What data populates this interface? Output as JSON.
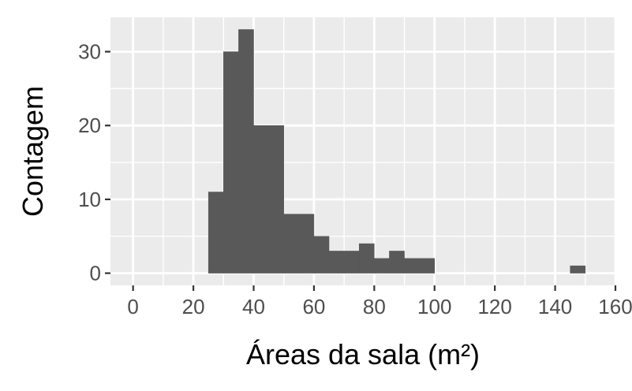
{
  "chart_data": {
    "type": "bar",
    "subtype": "histogram",
    "title": "",
    "xlabel": "Áreas da sala (m²)",
    "ylabel": "Contagem",
    "xlim": [
      -7.5,
      160
    ],
    "ylim": [
      -1.65,
      34.65
    ],
    "x_ticks": [
      0,
      20,
      40,
      60,
      80,
      100,
      120,
      140,
      160
    ],
    "x_tick_labels": [
      "0",
      "20",
      "40",
      "60",
      "80",
      "100",
      "120",
      "140",
      "160"
    ],
    "y_ticks": [
      0,
      10,
      20,
      30
    ],
    "y_tick_labels": [
      "0",
      "10",
      "20",
      "30"
    ],
    "bin_width": 5,
    "bins": [
      {
        "x0": 25,
        "x1": 30,
        "count": 11
      },
      {
        "x0": 30,
        "x1": 35,
        "count": 30
      },
      {
        "x0": 35,
        "x1": 40,
        "count": 33
      },
      {
        "x0": 40,
        "x1": 45,
        "count": 20
      },
      {
        "x0": 45,
        "x1": 50,
        "count": 20
      },
      {
        "x0": 50,
        "x1": 55,
        "count": 8
      },
      {
        "x0": 55,
        "x1": 60,
        "count": 8
      },
      {
        "x0": 60,
        "x1": 65,
        "count": 5
      },
      {
        "x0": 65,
        "x1": 70,
        "count": 3
      },
      {
        "x0": 70,
        "x1": 75,
        "count": 3
      },
      {
        "x0": 75,
        "x1": 80,
        "count": 4
      },
      {
        "x0": 80,
        "x1": 85,
        "count": 2
      },
      {
        "x0": 85,
        "x1": 90,
        "count": 3
      },
      {
        "x0": 90,
        "x1": 95,
        "count": 2
      },
      {
        "x0": 95,
        "x1": 100,
        "count": 2
      },
      {
        "x0": 145,
        "x1": 150,
        "count": 1
      }
    ],
    "grid": true,
    "legend": "none",
    "colors": {
      "panel_background": "#ebebeb",
      "grid_major": "#ffffff",
      "bar_fill": "#595959",
      "tick_label": "#4d4d4d",
      "tick_mark": "#333333"
    }
  }
}
